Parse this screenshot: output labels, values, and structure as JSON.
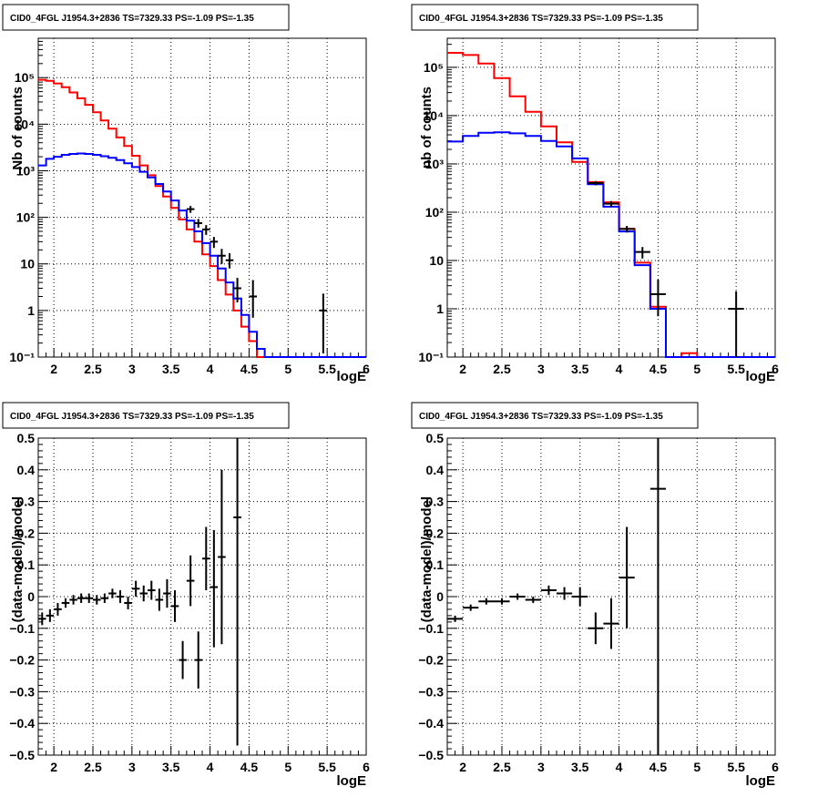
{
  "chart_data": [
    {
      "type": "line",
      "title": "CID0_4FGL J1954.3+2836 TS=7329.33 PS=-1.09 PS=-1.35",
      "xlabel": "logE",
      "ylabel": "Nb of counts",
      "xscale": "linear",
      "yscale": "log",
      "xlim": [
        1.8,
        6
      ],
      "ylim": [
        0.1,
        700000
      ],
      "grid": true,
      "xticks": [
        "2",
        "2.5",
        "3",
        "3.5",
        "4",
        "4.5",
        "5",
        "5.5",
        "6"
      ],
      "yticks": [
        {
          "v": 0.1,
          "t": "10⁻¹"
        },
        {
          "v": 1,
          "t": "1"
        },
        {
          "v": 10,
          "t": "10"
        },
        {
          "v": 100,
          "t": "10²"
        },
        {
          "v": 1000,
          "t": "10³"
        },
        {
          "v": 10000,
          "t": "10⁴"
        },
        {
          "v": 100000,
          "t": "10⁵"
        }
      ],
      "series": [
        {
          "color": "#ff0000",
          "style": "step",
          "x": [
            1.8,
            1.9,
            2.0,
            2.1,
            2.2,
            2.3,
            2.4,
            2.5,
            2.6,
            2.7,
            2.8,
            2.9,
            3.0,
            3.1,
            3.2,
            3.3,
            3.4,
            3.5,
            3.6,
            3.7,
            3.8,
            3.9,
            4.0,
            4.1,
            4.2,
            4.3,
            4.4,
            4.5,
            4.6,
            4.7,
            4.8,
            4.9,
            5.0,
            5.1,
            5.2,
            5.3,
            5.4,
            5.5,
            5.6,
            5.7,
            5.8,
            5.9
          ],
          "y": [
            90000,
            85000,
            75000,
            62000,
            48000,
            36000,
            26000,
            18000,
            12000,
            8000,
            5200,
            3400,
            2100,
            1300,
            800,
            470,
            280,
            160,
            90,
            55,
            30,
            16,
            9,
            4.5,
            2.2,
            1.0,
            0.45,
            0.22,
            0.1,
            0.1,
            0.1,
            0.1,
            0.1,
            0.1,
            0.1,
            0.1,
            0.1,
            0.1,
            0.1,
            0.1,
            0.1,
            0.1
          ]
        },
        {
          "color": "#0000ff",
          "style": "step",
          "x": [
            1.8,
            1.9,
            2.0,
            2.1,
            2.2,
            2.3,
            2.4,
            2.5,
            2.6,
            2.7,
            2.8,
            2.9,
            3.0,
            3.1,
            3.2,
            3.3,
            3.4,
            3.5,
            3.6,
            3.7,
            3.8,
            3.9,
            4.0,
            4.1,
            4.2,
            4.3,
            4.4,
            4.5,
            4.6,
            4.7,
            4.8,
            4.9,
            5.0,
            5.1,
            5.2,
            5.3,
            5.4,
            5.5,
            5.6,
            5.7,
            5.8,
            5.9
          ],
          "y": [
            1300,
            1800,
            2000,
            2200,
            2300,
            2350,
            2300,
            2200,
            2050,
            1900,
            1700,
            1450,
            1200,
            950,
            720,
            520,
            360,
            230,
            140,
            85,
            50,
            28,
            15,
            8,
            4,
            1.8,
            0.8,
            0.35,
            0.15,
            0.1,
            0.1,
            0.1,
            0.1,
            0.1,
            0.1,
            0.1,
            0.1,
            0.1,
            0.1,
            0.1,
            0.1,
            0.1
          ]
        }
      ],
      "points": [
        {
          "x": 3.75,
          "y": 150,
          "lo": 125,
          "hi": 175,
          "xe": 0.05
        },
        {
          "x": 3.85,
          "y": 75,
          "lo": 60,
          "hi": 92,
          "xe": 0.05
        },
        {
          "x": 3.95,
          "y": 55,
          "lo": 42,
          "hi": 68,
          "xe": 0.05
        },
        {
          "x": 4.05,
          "y": 30,
          "lo": 22,
          "hi": 38,
          "xe": 0.05
        },
        {
          "x": 4.15,
          "y": 15,
          "lo": 10,
          "hi": 21,
          "xe": 0.05
        },
        {
          "x": 4.25,
          "y": 12,
          "lo": 8,
          "hi": 17,
          "xe": 0.05
        },
        {
          "x": 4.35,
          "y": 3,
          "lo": 1.5,
          "hi": 5,
          "xe": 0.05
        },
        {
          "x": 4.55,
          "y": 2,
          "lo": 0.7,
          "hi": 4.5,
          "xe": 0.05
        },
        {
          "x": 5.45,
          "y": 1,
          "lo": 0.12,
          "hi": 2.3,
          "xe": 0.05
        }
      ]
    },
    {
      "type": "line",
      "title": "CID0_4FGL J1954.3+2836 TS=7329.33 PS=-1.09 PS=-1.35",
      "xlabel": "logE",
      "ylabel": "nb of counts",
      "xscale": "linear",
      "yscale": "log",
      "xlim": [
        1.8,
        6
      ],
      "ylim": [
        0.1,
        400000
      ],
      "grid": true,
      "xticks": [
        "2",
        "2.5",
        "3",
        "3.5",
        "4",
        "4.5",
        "5",
        "5.5",
        "6"
      ],
      "yticks": [
        {
          "v": 0.1,
          "t": "10⁻¹"
        },
        {
          "v": 1,
          "t": "1"
        },
        {
          "v": 10,
          "t": "10"
        },
        {
          "v": 100,
          "t": "10²"
        },
        {
          "v": 1000,
          "t": "10³"
        },
        {
          "v": 10000,
          "t": "10⁴"
        },
        {
          "v": 100000,
          "t": "10⁵"
        }
      ],
      "series": [
        {
          "color": "#ff0000",
          "style": "step",
          "x": [
            1.8,
            2.0,
            2.2,
            2.4,
            2.6,
            2.8,
            3.0,
            3.2,
            3.4,
            3.6,
            3.8,
            4.0,
            4.2,
            4.4,
            4.6,
            4.8,
            5.0,
            5.2,
            5.4,
            5.6,
            5.8
          ],
          "y": [
            200000,
            180000,
            120000,
            60000,
            25000,
            12000,
            6000,
            2800,
            1100,
            420,
            160,
            45,
            9,
            1.1,
            0.1,
            0.12,
            0.1,
            0.1,
            0.1,
            0.1,
            0.1
          ]
        },
        {
          "color": "#0000ff",
          "style": "step",
          "x": [
            1.8,
            2.0,
            2.2,
            2.4,
            2.6,
            2.8,
            3.0,
            3.2,
            3.4,
            3.6,
            3.8,
            4.0,
            4.2,
            4.4,
            4.6,
            4.8,
            5.0,
            5.2,
            5.4,
            5.6,
            5.8
          ],
          "y": [
            2900,
            3800,
            4400,
            4500,
            4300,
            3800,
            3000,
            2300,
            1300,
            380,
            130,
            40,
            8,
            1.0,
            0.1,
            0.1,
            0.1,
            0.1,
            0.1,
            0.1,
            0.1
          ]
        }
      ],
      "points": [
        {
          "x": 3.7,
          "y": 400,
          "lo": 360,
          "hi": 440,
          "xe": 0.1
        },
        {
          "x": 3.9,
          "y": 150,
          "lo": 130,
          "hi": 170,
          "xe": 0.1
        },
        {
          "x": 4.1,
          "y": 45,
          "lo": 38,
          "hi": 52,
          "xe": 0.1
        },
        {
          "x": 4.3,
          "y": 15,
          "lo": 11,
          "hi": 19,
          "xe": 0.1
        },
        {
          "x": 4.5,
          "y": 2,
          "lo": 0.7,
          "hi": 4,
          "xe": 0.1
        },
        {
          "x": 5.5,
          "y": 1,
          "lo": 0.1,
          "hi": 2.3,
          "xe": 0.1
        }
      ]
    },
    {
      "type": "scatter",
      "title": "CID0_4FGL J1954.3+2836 TS=7329.33 PS=-1.09 PS=-1.35",
      "xlabel": "logE",
      "ylabel": "(data-model)/model",
      "xscale": "linear",
      "yscale": "linear",
      "xlim": [
        1.8,
        6
      ],
      "ylim": [
        -0.5,
        0.5
      ],
      "grid": true,
      "xticks": [
        "2",
        "2.5",
        "3",
        "3.5",
        "4",
        "4.5",
        "5",
        "5.5",
        "6"
      ],
      "yticks": [
        {
          "v": -0.5,
          "t": "−0.5"
        },
        {
          "v": -0.4,
          "t": "−0.4"
        },
        {
          "v": -0.3,
          "t": "−0.3"
        },
        {
          "v": -0.2,
          "t": "−0.2"
        },
        {
          "v": -0.1,
          "t": "−0.1"
        },
        {
          "v": 0,
          "t": "0"
        },
        {
          "v": 0.1,
          "t": "0.1"
        },
        {
          "v": 0.2,
          "t": "0.2"
        },
        {
          "v": 0.3,
          "t": "0.3"
        },
        {
          "v": 0.4,
          "t": "0.4"
        },
        {
          "v": 0.5,
          "t": "0.5"
        }
      ],
      "series": [],
      "points": [
        {
          "x": 1.85,
          "y": -0.07,
          "lo": -0.09,
          "hi": -0.05,
          "xe": 0.05
        },
        {
          "x": 1.95,
          "y": -0.06,
          "lo": -0.08,
          "hi": -0.04,
          "xe": 0.05
        },
        {
          "x": 2.05,
          "y": -0.04,
          "lo": -0.06,
          "hi": -0.02,
          "xe": 0.05
        },
        {
          "x": 2.15,
          "y": -0.02,
          "lo": -0.035,
          "hi": -0.005,
          "xe": 0.05
        },
        {
          "x": 2.25,
          "y": -0.01,
          "lo": -0.025,
          "hi": 0.005,
          "xe": 0.05
        },
        {
          "x": 2.35,
          "y": -0.005,
          "lo": -0.02,
          "hi": 0.01,
          "xe": 0.05
        },
        {
          "x": 2.45,
          "y": -0.005,
          "lo": -0.02,
          "hi": 0.01,
          "xe": 0.05
        },
        {
          "x": 2.55,
          "y": -0.01,
          "lo": -0.025,
          "hi": 0.005,
          "xe": 0.05
        },
        {
          "x": 2.65,
          "y": -0.005,
          "lo": -0.02,
          "hi": 0.01,
          "xe": 0.05
        },
        {
          "x": 2.75,
          "y": 0.01,
          "lo": -0.005,
          "hi": 0.025,
          "xe": 0.05
        },
        {
          "x": 2.85,
          "y": 0.0,
          "lo": -0.02,
          "hi": 0.02,
          "xe": 0.05
        },
        {
          "x": 2.95,
          "y": -0.02,
          "lo": -0.04,
          "hi": 0.0,
          "xe": 0.05
        },
        {
          "x": 3.05,
          "y": 0.025,
          "lo": 0.0,
          "hi": 0.05,
          "xe": 0.05
        },
        {
          "x": 3.15,
          "y": 0.01,
          "lo": -0.015,
          "hi": 0.035,
          "xe": 0.05
        },
        {
          "x": 3.25,
          "y": 0.02,
          "lo": -0.01,
          "hi": 0.05,
          "xe": 0.05
        },
        {
          "x": 3.35,
          "y": -0.01,
          "lo": -0.045,
          "hi": 0.025,
          "xe": 0.05
        },
        {
          "x": 3.45,
          "y": 0.01,
          "lo": -0.035,
          "hi": 0.055,
          "xe": 0.05
        },
        {
          "x": 3.55,
          "y": -0.03,
          "lo": -0.08,
          "hi": 0.02,
          "xe": 0.05
        },
        {
          "x": 3.65,
          "y": -0.2,
          "lo": -0.26,
          "hi": -0.14,
          "xe": 0.05
        },
        {
          "x": 3.75,
          "y": 0.05,
          "lo": -0.03,
          "hi": 0.13,
          "xe": 0.05
        },
        {
          "x": 3.85,
          "y": -0.2,
          "lo": -0.29,
          "hi": -0.11,
          "xe": 0.05
        },
        {
          "x": 3.95,
          "y": 0.12,
          "lo": 0.02,
          "hi": 0.22,
          "xe": 0.05
        },
        {
          "x": 4.05,
          "y": 0.03,
          "lo": -0.16,
          "hi": 0.21,
          "xe": 0.05
        },
        {
          "x": 4.15,
          "y": 0.125,
          "lo": -0.15,
          "hi": 0.4,
          "xe": 0.05
        },
        {
          "x": 4.35,
          "y": 0.25,
          "lo": -0.47,
          "hi": 0.5,
          "xe": 0.05
        }
      ]
    },
    {
      "type": "scatter",
      "title": "CID0_4FGL J1954.3+2836 TS=7329.33 PS=-1.09 PS=-1.35",
      "xlabel": "logE",
      "ylabel": "(data-model)/model",
      "xscale": "linear",
      "yscale": "linear",
      "xlim": [
        1.8,
        6
      ],
      "ylim": [
        -0.5,
        0.5
      ],
      "grid": true,
      "xticks": [
        "2",
        "2.5",
        "3",
        "3.5",
        "4",
        "4.5",
        "5",
        "5.5",
        "6"
      ],
      "yticks": [
        {
          "v": -0.5,
          "t": "−0.5"
        },
        {
          "v": -0.4,
          "t": "−0.4"
        },
        {
          "v": -0.3,
          "t": "−0.3"
        },
        {
          "v": -0.2,
          "t": "−0.2"
        },
        {
          "v": -0.1,
          "t": "−0.1"
        },
        {
          "v": 0,
          "t": "0"
        },
        {
          "v": 0.1,
          "t": "0.1"
        },
        {
          "v": 0.2,
          "t": "0.2"
        },
        {
          "v": 0.3,
          "t": "0.3"
        },
        {
          "v": 0.4,
          "t": "0.4"
        },
        {
          "v": 0.5,
          "t": "0.5"
        }
      ],
      "series": [],
      "points": [
        {
          "x": 1.9,
          "y": -0.07,
          "lo": -0.08,
          "hi": -0.06,
          "xe": 0.1
        },
        {
          "x": 2.1,
          "y": -0.035,
          "lo": -0.045,
          "hi": -0.025,
          "xe": 0.1
        },
        {
          "x": 2.3,
          "y": -0.015,
          "lo": -0.025,
          "hi": -0.005,
          "xe": 0.1
        },
        {
          "x": 2.5,
          "y": -0.015,
          "lo": -0.025,
          "hi": -0.005,
          "xe": 0.1
        },
        {
          "x": 2.7,
          "y": 0.0,
          "lo": -0.01,
          "hi": 0.01,
          "xe": 0.1
        },
        {
          "x": 2.9,
          "y": -0.01,
          "lo": -0.02,
          "hi": 0.0,
          "xe": 0.1
        },
        {
          "x": 3.1,
          "y": 0.02,
          "lo": 0.005,
          "hi": 0.035,
          "xe": 0.1
        },
        {
          "x": 3.3,
          "y": 0.01,
          "lo": -0.01,
          "hi": 0.03,
          "xe": 0.1
        },
        {
          "x": 3.5,
          "y": 0.0,
          "lo": -0.03,
          "hi": 0.03,
          "xe": 0.1
        },
        {
          "x": 3.7,
          "y": -0.1,
          "lo": -0.15,
          "hi": -0.05,
          "xe": 0.1
        },
        {
          "x": 3.9,
          "y": -0.085,
          "lo": -0.165,
          "hi": -0.005,
          "xe": 0.1
        },
        {
          "x": 4.1,
          "y": 0.06,
          "lo": -0.1,
          "hi": 0.22,
          "xe": 0.1
        },
        {
          "x": 4.5,
          "y": 0.34,
          "lo": -0.5,
          "hi": 0.5,
          "xe": 0.1
        }
      ]
    }
  ]
}
